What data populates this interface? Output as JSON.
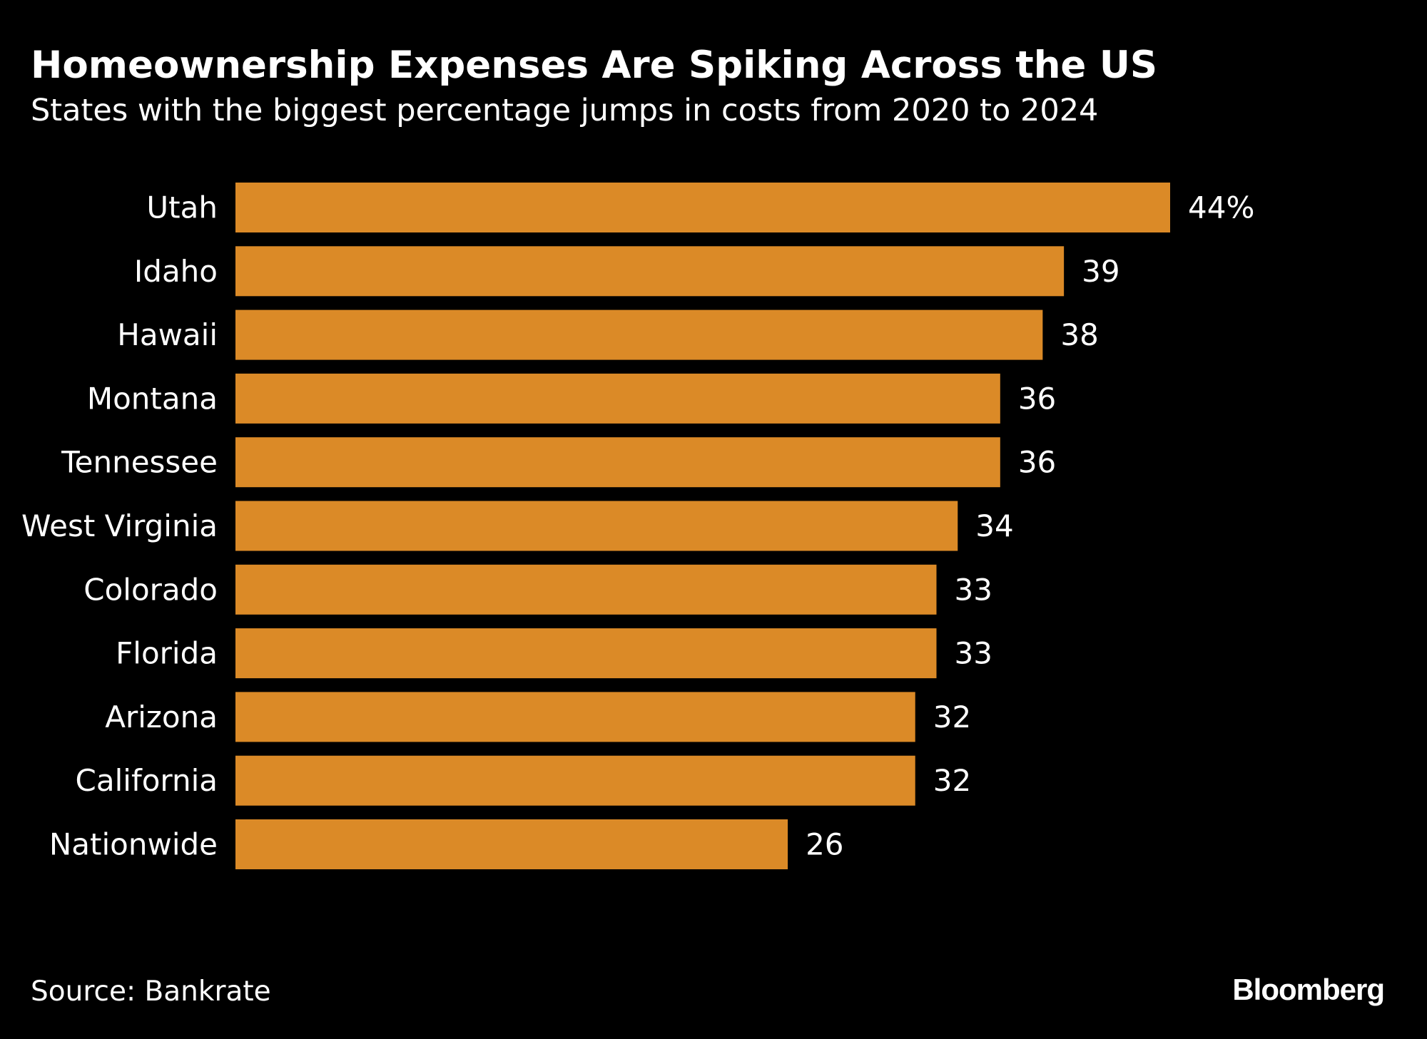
{
  "header": {
    "title": "Homeownership Expenses Are Spiking Across the US",
    "subtitle": "States with the biggest percentage jumps in costs from 2020 to 2024"
  },
  "footer": {
    "source": "Source: Bankrate",
    "logo": "Bloomberg"
  },
  "colors": {
    "background": "#000000",
    "bar": "#DB8A27",
    "text": "#FFFFFF"
  },
  "chart_data": {
    "type": "bar",
    "orientation": "horizontal",
    "title": "Homeownership Expenses Are Spiking Across the US",
    "subtitle": "States with the biggest percentage jumps in costs from 2020 to 2024",
    "unit": "%",
    "categories": [
      "Utah",
      "Idaho",
      "Hawaii",
      "Montana",
      "Tennessee",
      "West Virginia",
      "Colorado",
      "Florida",
      "Arizona",
      "California",
      "Nationwide"
    ],
    "values": [
      44,
      39,
      38,
      36,
      36,
      34,
      33,
      33,
      32,
      32,
      26
    ],
    "value_labels": [
      "44%",
      "39",
      "38",
      "36",
      "36",
      "34",
      "33",
      "33",
      "32",
      "32",
      "26"
    ],
    "xlim": [
      0,
      44
    ],
    "grid": false,
    "legend": "none"
  }
}
